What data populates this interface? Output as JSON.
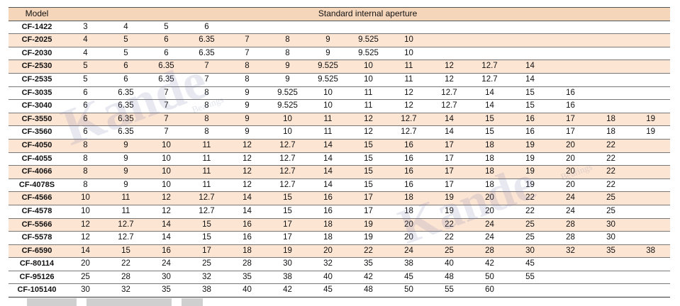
{
  "table": {
    "header_model": "Model",
    "header_aperture": "Standard internal aperture",
    "rows": [
      {
        "model": "CF-1422",
        "values": [
          "3",
          "4",
          "5",
          "6",
          "",
          "",
          "",
          "",
          "",
          "",
          "",
          "",
          "",
          "",
          ""
        ]
      },
      {
        "model": "CF-2025",
        "values": [
          "4",
          "5",
          "6",
          "6.35",
          "7",
          "8",
          "9",
          "9.525",
          "10",
          "",
          "",
          "",
          "",
          "",
          ""
        ]
      },
      {
        "model": "CF-2030",
        "values": [
          "4",
          "5",
          "6",
          "6.35",
          "7",
          "8",
          "9",
          "9.525",
          "10",
          "",
          "",
          "",
          "",
          "",
          ""
        ]
      },
      {
        "model": "CF-2530",
        "values": [
          "5",
          "6",
          "6.35",
          "7",
          "8",
          "9",
          "9.525",
          "10",
          "11",
          "12",
          "12.7",
          "14",
          "",
          "",
          ""
        ]
      },
      {
        "model": "CF-2535",
        "values": [
          "5",
          "6",
          "6.35",
          "7",
          "8",
          "9",
          "9.525",
          "10",
          "11",
          "12",
          "12.7",
          "14",
          "",
          "",
          ""
        ]
      },
      {
        "model": "CF-3035",
        "values": [
          "6",
          "6.35",
          "7",
          "8",
          "9",
          "9.525",
          "10",
          "11",
          "12",
          "12.7",
          "14",
          "15",
          "16",
          "",
          ""
        ]
      },
      {
        "model": "CF-3040",
        "values": [
          "6",
          "6.35",
          "7",
          "8",
          "9",
          "9.525",
          "10",
          "11",
          "12",
          "12.7",
          "14",
          "15",
          "16",
          "",
          ""
        ]
      },
      {
        "model": "CF-3550",
        "values": [
          "6",
          "6.35",
          "7",
          "8",
          "9",
          "10",
          "11",
          "12",
          "12.7",
          "14",
          "15",
          "16",
          "17",
          "18",
          "19"
        ]
      },
      {
        "model": "CF-3560",
        "values": [
          "6",
          "6.35",
          "7",
          "8",
          "9",
          "10",
          "11",
          "12",
          "12.7",
          "14",
          "15",
          "16",
          "17",
          "18",
          "19"
        ]
      },
      {
        "model": "CF-4050",
        "values": [
          "8",
          "9",
          "10",
          "11",
          "12",
          "12.7",
          "14",
          "15",
          "16",
          "17",
          "18",
          "19",
          "20",
          "22",
          ""
        ]
      },
      {
        "model": "CF-4055",
        "values": [
          "8",
          "9",
          "10",
          "11",
          "12",
          "12.7",
          "14",
          "15",
          "16",
          "17",
          "18",
          "19",
          "20",
          "22",
          ""
        ]
      },
      {
        "model": "CF-4066",
        "values": [
          "8",
          "9",
          "10",
          "11",
          "12",
          "12.7",
          "14",
          "15",
          "16",
          "17",
          "18",
          "19",
          "20",
          "22",
          ""
        ]
      },
      {
        "model": "CF-4078S",
        "values": [
          "8",
          "9",
          "10",
          "11",
          "12",
          "12.7",
          "14",
          "15",
          "16",
          "17",
          "18",
          "19",
          "20",
          "22",
          ""
        ]
      },
      {
        "model": "CF-4566",
        "values": [
          "10",
          "11",
          "12",
          "12.7",
          "14",
          "15",
          "16",
          "17",
          "18",
          "19",
          "20",
          "22",
          "24",
          "25",
          ""
        ]
      },
      {
        "model": "CF-4578",
        "values": [
          "10",
          "11",
          "12",
          "12.7",
          "14",
          "15",
          "16",
          "17",
          "18",
          "19",
          "20",
          "22",
          "24",
          "25",
          ""
        ]
      },
      {
        "model": "CF-5566",
        "values": [
          "12",
          "12.7",
          "14",
          "15",
          "16",
          "17",
          "18",
          "19",
          "20",
          "22",
          "24",
          "25",
          "28",
          "30",
          ""
        ]
      },
      {
        "model": "CF-5578",
        "values": [
          "12",
          "12.7",
          "14",
          "15",
          "16",
          "17",
          "18",
          "19",
          "20",
          "22",
          "24",
          "25",
          "28",
          "30",
          ""
        ]
      },
      {
        "model": "CF-6590",
        "values": [
          "14",
          "15",
          "16",
          "17",
          "18",
          "19",
          "20",
          "22",
          "24",
          "25",
          "28",
          "30",
          "32",
          "35",
          "38"
        ]
      },
      {
        "model": "CF-80114",
        "values": [
          "20",
          "22",
          "24",
          "25",
          "28",
          "30",
          "32",
          "35",
          "38",
          "40",
          "42",
          "45",
          "",
          "",
          ""
        ]
      },
      {
        "model": "CF-95126",
        "values": [
          "25",
          "28",
          "30",
          "32",
          "35",
          "38",
          "40",
          "42",
          "45",
          "48",
          "50",
          "55",
          "",
          "",
          ""
        ]
      },
      {
        "model": "CF-105140",
        "values": [
          "30",
          "32",
          "35",
          "38",
          "40",
          "42",
          "45",
          "48",
          "50",
          "55",
          "60",
          "",
          "",
          "",
          ""
        ]
      }
    ]
  },
  "watermark": {
    "brand": "Kande",
    "sub": "Bearings"
  },
  "colors": {
    "header_bg": "#f6d6bb",
    "alt_row_bg": "#fde5d3",
    "watermark": "#8890b0"
  }
}
